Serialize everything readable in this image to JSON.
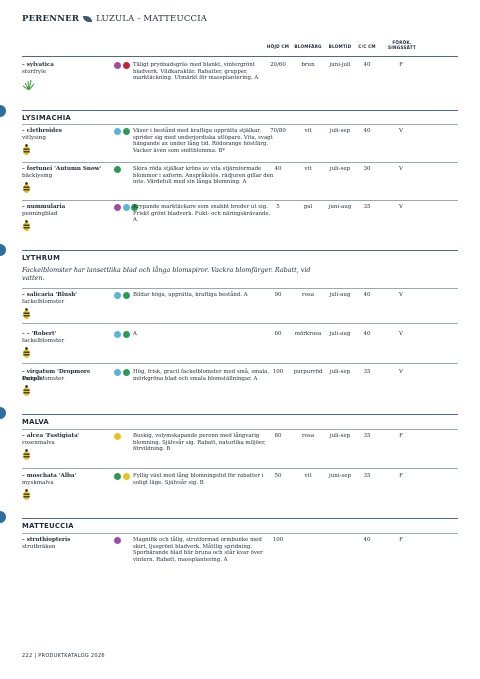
{
  "header": {
    "category": "PERENNER",
    "genera": "LUZULA - MATTEUCCIA"
  },
  "columns": {
    "height": "HÖJD CM",
    "flower_color": "BLOMFÄRG",
    "bloom_time": "BLOMTID",
    "spacing": "C/C CM",
    "propagation": "FÖRÖK. SINGSSÄTT"
  },
  "first_row": {
    "name": "– sylvatica",
    "common": "storfryle",
    "colors": [
      "#a24ba2",
      "#c0223a"
    ],
    "desc": "Täligt prydnadsgräs med blankt, vintergrönt bladverk. Vildkaraktär. Rabatter, grupper, marktäckning. Utmärkt för massplantering. A",
    "height": "20/60",
    "flower_color": "brun",
    "bloom": "juni-juli",
    "spacing": "40",
    "prop": "F",
    "icon": "grass-icon"
  },
  "sections": [
    {
      "title": "LYSIMACHIA",
      "intro": "",
      "rows": [
        {
          "name": "– clethroides",
          "common": "vitlysing",
          "colors": [
            "#5ab4dc",
            "#2c9a52"
          ],
          "desc": "Växer i bestånd med kraftiga upprätta stjälkar, sprider sig med underjordiska utlöpare. Vita, svagt hängande ax under lång tid. Rödorange höstfärg. Vacker även som snittblomma. B*",
          "height": "70/80",
          "flower_color": "vit",
          "bloom": "juli-sep",
          "spacing": "40",
          "prop": "V",
          "icon": "bee-icon"
        },
        {
          "name": "– fortunei 'Autumn Snow'",
          "common": "bäcklysing",
          "colors": [
            "#2c9a52"
          ],
          "desc": "Skira röda stjälkar kröns av vita stjärnformade blommor i axform. Anspråkslös. rädjuren gillar den inte. Värdefull med sin långa blomning.  A",
          "height": "40",
          "flower_color": "vit",
          "bloom": "juli-sep",
          "spacing": "30",
          "prop": "V",
          "icon": "bee-icon"
        },
        {
          "name": "– nummularia",
          "common": "penningblad",
          "colors": [
            "#a24ba2",
            "#5ab4dc",
            "#2c9a52"
          ],
          "desc": "Krypande marktäckare som snabbt breder ut sig. Friskt grönt bladverk. Fukt- och näringskrävande. A",
          "height": "5",
          "flower_color": "gul",
          "bloom": "juni-aug",
          "spacing": "35",
          "prop": "V",
          "icon": "bee-icon"
        }
      ]
    },
    {
      "title": "LYTHRUM",
      "intro": "Fackelblomster har lansettlika blad och långa blomspiror. Vackra blomfärger. Rabatt, vid vatten.",
      "rows": [
        {
          "name": "– salicaria 'Blush'",
          "common": "fackelblomster",
          "colors": [
            "#5ab4dc",
            "#2c9a52"
          ],
          "desc": "Bildar höga, upprätta, kraftiga bestånd. A",
          "height": "90",
          "flower_color": "rosa",
          "bloom": "juli-aug",
          "spacing": "40",
          "prop": "V",
          "icon": "bee-icon"
        },
        {
          "name": "– – 'Robert'",
          "common": "fackelblomster",
          "colors": [
            "#5ab4dc",
            "#2c9a52"
          ],
          "desc": "A",
          "height": "60",
          "flower_color": "mörkrosa",
          "bloom": "juli-aug",
          "spacing": "40",
          "prop": "V",
          "icon": "bee-icon"
        },
        {
          "name": "– virgatum 'Dropmore Purple'",
          "common": "fackelblomster",
          "colors": [
            "#5ab4dc",
            "#2c9a52"
          ],
          "desc": "Hög, frisk, gracil fackelblomster med små, smala, mörkgröna blad och smala blomställningar. A",
          "height": "100",
          "flower_color": "purpurröd",
          "bloom": "juli-sep",
          "spacing": "35",
          "prop": "V",
          "icon": "bee-icon"
        }
      ]
    },
    {
      "title": "MALVA",
      "intro": "",
      "rows": [
        {
          "name": "– alcea 'Fastigiata'",
          "common": "rosenmalva",
          "colors": [
            "#e8c51a"
          ],
          "desc": "Buskig, volymskapande perenn med långvarig blomning. Självsår sig. Rabatt, naturlika miljöer, förvildning. B",
          "height": "80",
          "flower_color": "rosa",
          "bloom": "juli-sep",
          "spacing": "35",
          "prop": "F",
          "icon": "bee-icon"
        },
        {
          "name": "– moschata 'Alba'",
          "common": "myskmalva",
          "colors": [
            "#2c9a52",
            "#e8c51a"
          ],
          "desc": "Fyllig växt med lång blomningstid för rabatter i soligt läge. Självsår sig. B",
          "height": "50",
          "flower_color": "vit",
          "bloom": "juni-sep",
          "spacing": "35",
          "prop": "F",
          "icon": "bee-icon"
        }
      ]
    },
    {
      "title": "MATTEUCCIA",
      "intro": "",
      "rows": [
        {
          "name": "– struthiopteris",
          "common": "strutbräken",
          "colors": [
            "#a24ba2"
          ],
          "desc": "Magnifik och tålig, strutformad ormbunke med skirt, ljusgrönt bladverk. Måttlig spridning. Sporbärande blad blir bruna och står kvar över vintern. Rabatt, massplantering. A",
          "height": "100",
          "flower_color": "",
          "bloom": "",
          "spacing": "40",
          "prop": "F",
          "icon": ""
        }
      ]
    }
  ],
  "footer": {
    "page": "222",
    "separator": "|",
    "catalog": "PRODUKTKATALOG 2026"
  },
  "colors": {
    "accent": "#2f6fa0",
    "text": "#1e2a3a"
  }
}
